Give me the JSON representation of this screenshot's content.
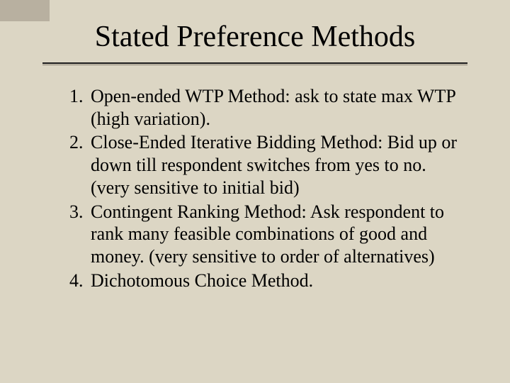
{
  "slide": {
    "background_color": "#dcd6c4",
    "corner_accent_color": "#b8b0a0",
    "text_color": "#000000",
    "rule_color_primary": "#1a1a1a",
    "rule_color_secondary": "#888070",
    "font_family": "Times New Roman",
    "title": "Stated Preference Methods",
    "title_fontsize": 42,
    "body_fontsize": 26,
    "list_type": "ordered",
    "items": [
      "Open-ended WTP Method: ask to state max WTP (high variation).",
      "Close-Ended Iterative Bidding Method: Bid up or down till respondent switches from yes to no. (very sensitive to initial bid)",
      "Contingent Ranking Method: Ask respondent to rank many feasible combinations of good and money. (very sensitive to order of alternatives)",
      "Dichotomous Choice Method."
    ]
  }
}
